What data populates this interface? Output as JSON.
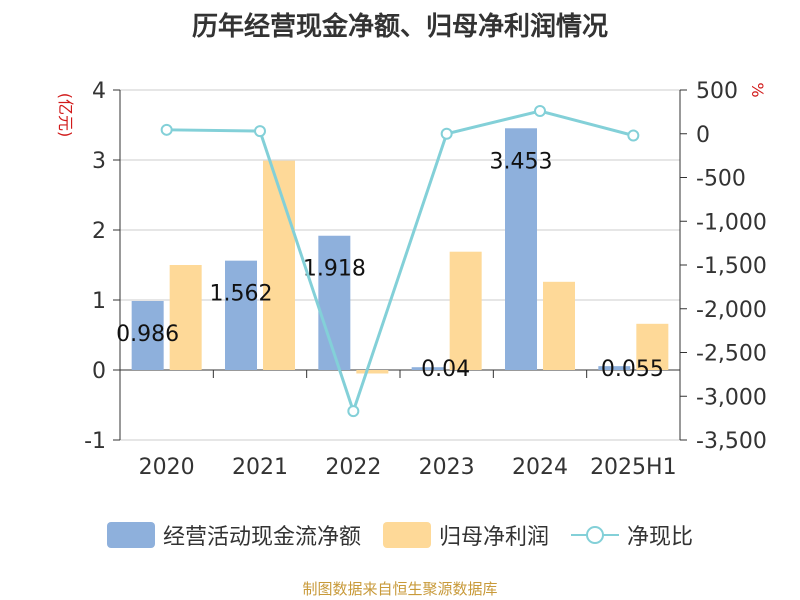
{
  "chart_data": {
    "type": "bar",
    "title": "历年经营现金净额、归母净利润情况",
    "left_axis_unit": "(亿元)",
    "right_axis_unit": "%",
    "categories": [
      "2020",
      "2021",
      "2022",
      "2023",
      "2024",
      "2025H1"
    ],
    "left_ylim": [
      -1,
      4
    ],
    "left_ticks": [
      "-1",
      "0",
      "1",
      "2",
      "3",
      "4"
    ],
    "right_ylim": [
      -3500,
      500
    ],
    "right_ticks": [
      "-3,500",
      "-3,000",
      "-2,500",
      "-2,000",
      "-1,500",
      "-1,000",
      "-500",
      "0",
      "500"
    ],
    "series": [
      {
        "name": "经营活动现金流净额",
        "kind": "bar",
        "axis": "left",
        "color": "#8eb0dc",
        "values": [
          0.986,
          1.562,
          1.918,
          0.04,
          3.453,
          0.055
        ],
        "labels": [
          "0.986",
          "1.562",
          "1.918",
          "0.04",
          "3.453",
          "0.055"
        ]
      },
      {
        "name": "归母净利润",
        "kind": "bar",
        "axis": "left",
        "color": "#fed998",
        "values": [
          1.5,
          2.99,
          -0.05,
          1.69,
          1.26,
          0.66
        ]
      },
      {
        "name": "净现比",
        "kind": "line",
        "axis": "right",
        "color": "#83d0d8",
        "values": [
          45,
          30,
          -3170,
          0,
          260,
          -20
        ]
      }
    ],
    "grid": true,
    "legend_position": "bottom"
  },
  "legend": [
    {
      "label": "经营活动现金流净额",
      "style": "bar",
      "color": "#8eb0dc"
    },
    {
      "label": "归母净利润",
      "style": "bar",
      "color": "#fed998"
    },
    {
      "label": "净现比",
      "style": "line",
      "color": "#83d0d8"
    }
  ],
  "footer": "制图数据来自恒生聚源数据库"
}
